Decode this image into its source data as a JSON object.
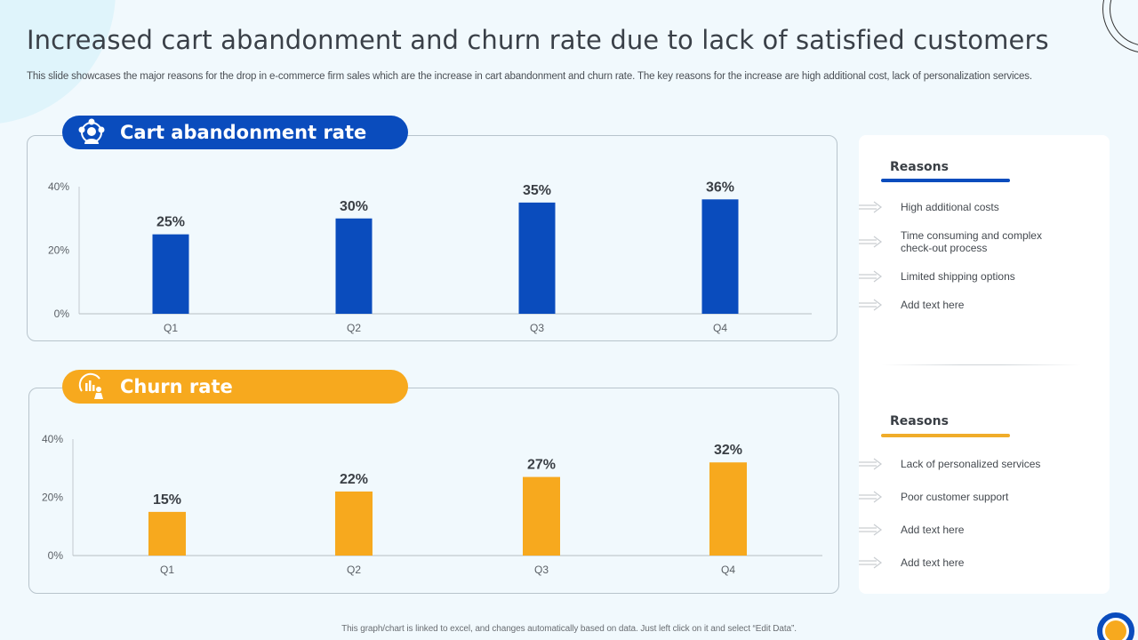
{
  "header": {
    "title": "Increased cart abandonment and churn rate due to lack of satisfied customers",
    "subtitle": "This slide showcases the major reasons for the drop in e-commerce firm sales which are the increase in cart abandonment and churn rate. The key reasons for the increase are high additional cost, lack of personalization services."
  },
  "colors": {
    "blue": "#0a4cbd",
    "orange": "#f7a91e",
    "text": "#3a4048"
  },
  "sections": [
    {
      "heading": "Cart abandonment rate",
      "icon": "customer-network-icon",
      "reasons_title": "Reasons",
      "reasons": [
        "High additional costs",
        "Time consuming and complex check-out process",
        "Limited shipping options",
        "Add text here"
      ]
    },
    {
      "heading": "Churn rate",
      "icon": "churn-analytics-icon",
      "reasons_title": "Reasons",
      "reasons": [
        "Lack of personalized services",
        "Poor customer support",
        "Add text here",
        "Add text here"
      ]
    }
  ],
  "footnote": "This graph/chart is linked to excel, and changes automatically based on data. Just left click on it and select “Edit Data”.",
  "chart_data": [
    {
      "type": "bar",
      "title": "Cart abandonment rate",
      "categories": [
        "Q1",
        "Q2",
        "Q3",
        "Q4"
      ],
      "values": [
        25,
        30,
        35,
        36
      ],
      "value_labels": [
        "25%",
        "30%",
        "35%",
        "36%"
      ],
      "ylim": [
        0,
        40
      ],
      "yticks": [
        "0%",
        "20%",
        "40%"
      ],
      "xlabel": "",
      "ylabel": "",
      "grid": false,
      "color": "#0a4cbd"
    },
    {
      "type": "bar",
      "title": "Churn rate",
      "categories": [
        "Q1",
        "Q2",
        "Q3",
        "Q4"
      ],
      "values": [
        15,
        22,
        27,
        32
      ],
      "value_labels": [
        "15%",
        "22%",
        "27%",
        "32%"
      ],
      "ylim": [
        0,
        40
      ],
      "yticks": [
        "0%",
        "20%",
        "40%"
      ],
      "xlabel": "",
      "ylabel": "",
      "grid": false,
      "color": "#f7a91e"
    }
  ]
}
